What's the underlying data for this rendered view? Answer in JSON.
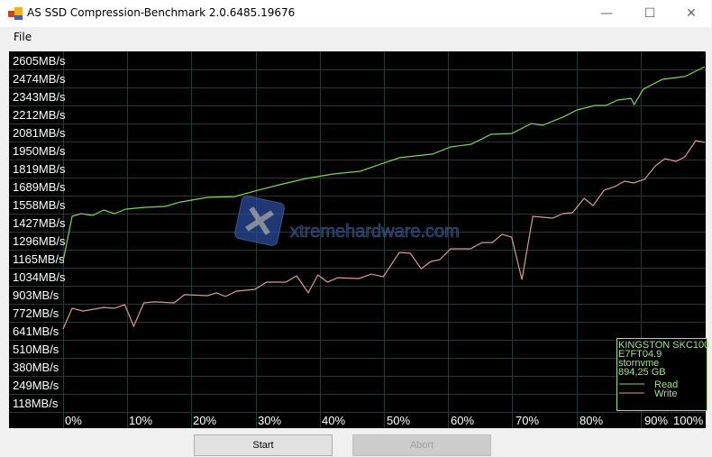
{
  "window": {
    "title": "AS SSD Compression-Benchmark 2.0.6485.19676",
    "minimize": "—",
    "maximize": "☐",
    "close": "✕"
  },
  "menu": {
    "file": "File"
  },
  "buttons": {
    "start": "Start",
    "abort": "Abort"
  },
  "watermark": "xtremehardware.com",
  "legend": {
    "lines": [
      "KINGSTON SKC100",
      "E7FT04.9",
      "stornvme",
      "894,25 GB"
    ],
    "read": "Read",
    "write": "Write"
  },
  "colors": {
    "background": "#000000",
    "grid": "#1e3c3c",
    "read": "#7fd45a",
    "write": "#d89a9a",
    "legend_text": "#a0e090",
    "label_text": "#ffffff"
  },
  "chart_data": {
    "type": "line",
    "ytick_labels": [
      "2605MB/s",
      "2474MB/s",
      "2343MB/s",
      "2212MB/s",
      "2081MB/s",
      "1950MB/s",
      "1819MB/s",
      "1689MB/s",
      "1558MB/s",
      "1427MB/s",
      "1296MB/s",
      "1165MB/s",
      "1034MB/s",
      "903MB/s",
      "772MB/s",
      "641MB/s",
      "510MB/s",
      "380MB/s",
      "249MB/s",
      "118MB/s"
    ],
    "xtick_labels": [
      "0%",
      "10%",
      "20%",
      "30%",
      "40%",
      "50%",
      "60%",
      "70%",
      "80%",
      "90%",
      "100%"
    ],
    "xlim": [
      0,
      100
    ],
    "ylim": [
      0,
      2605
    ],
    "grid": true,
    "legend_placement": "bottom-right",
    "series": [
      {
        "name": "Read",
        "points": [
          [
            0,
            1088
          ],
          [
            1.4,
            1413
          ],
          [
            2.8,
            1433
          ],
          [
            4.6,
            1420
          ],
          [
            6.3,
            1459
          ],
          [
            8.0,
            1433
          ],
          [
            9.8,
            1465
          ],
          [
            12.6,
            1478
          ],
          [
            15.9,
            1485
          ],
          [
            18.3,
            1517
          ],
          [
            22.5,
            1550
          ],
          [
            26.7,
            1556
          ],
          [
            29.9,
            1596
          ],
          [
            33.7,
            1641
          ],
          [
            37.9,
            1687
          ],
          [
            42.1,
            1719
          ],
          [
            46.3,
            1739
          ],
          [
            49.9,
            1797
          ],
          [
            52.5,
            1837
          ],
          [
            57.6,
            1863
          ],
          [
            60.4,
            1915
          ],
          [
            63.6,
            1934
          ],
          [
            66.7,
            2006
          ],
          [
            69.9,
            2012
          ],
          [
            73.0,
            2084
          ],
          [
            74.7,
            2071
          ],
          [
            77.9,
            2130
          ],
          [
            80.1,
            2182
          ],
          [
            82.9,
            2214
          ],
          [
            84.6,
            2214
          ],
          [
            86.4,
            2253
          ],
          [
            88.5,
            2266
          ],
          [
            89.0,
            2221
          ],
          [
            90.4,
            2331
          ],
          [
            93.4,
            2403
          ],
          [
            96.9,
            2423
          ],
          [
            100,
            2494
          ]
        ]
      },
      {
        "name": "Write",
        "points": [
          [
            0,
            599
          ],
          [
            1.4,
            749
          ],
          [
            3.1,
            729
          ],
          [
            6.3,
            755
          ],
          [
            8.0,
            749
          ],
          [
            9.6,
            775
          ],
          [
            11.0,
            619
          ],
          [
            12.6,
            788
          ],
          [
            14.2,
            795
          ],
          [
            17.3,
            788
          ],
          [
            18.9,
            847
          ],
          [
            22.5,
            840
          ],
          [
            23.9,
            860
          ],
          [
            25.3,
            834
          ],
          [
            27.0,
            873
          ],
          [
            29.9,
            886
          ],
          [
            31.7,
            938
          ],
          [
            34.7,
            938
          ],
          [
            36.4,
            983
          ],
          [
            38.2,
            860
          ],
          [
            39.7,
            990
          ],
          [
            41.2,
            938
          ],
          [
            42.8,
            970
          ],
          [
            46.1,
            964
          ],
          [
            48.0,
            996
          ],
          [
            49.9,
            977
          ],
          [
            52.4,
            1153
          ],
          [
            54.1,
            1146
          ],
          [
            55.8,
            1035
          ],
          [
            57.3,
            1087
          ],
          [
            58.7,
            1100
          ],
          [
            60.4,
            1179
          ],
          [
            63.5,
            1179
          ],
          [
            65.3,
            1224
          ],
          [
            66.9,
            1224
          ],
          [
            68.4,
            1283
          ],
          [
            69.9,
            1263
          ],
          [
            71.5,
            957
          ],
          [
            73.2,
            1413
          ],
          [
            76.3,
            1400
          ],
          [
            77.9,
            1433
          ],
          [
            79.4,
            1440
          ],
          [
            81.2,
            1543
          ],
          [
            82.6,
            1491
          ],
          [
            84.3,
            1602
          ],
          [
            86.0,
            1628
          ],
          [
            87.5,
            1667
          ],
          [
            88.9,
            1654
          ],
          [
            90.6,
            1680
          ],
          [
            92.3,
            1778
          ],
          [
            93.8,
            1830
          ],
          [
            95.5,
            1810
          ],
          [
            96.9,
            1843
          ],
          [
            98.6,
            1960
          ],
          [
            100,
            1947
          ]
        ]
      }
    ]
  }
}
